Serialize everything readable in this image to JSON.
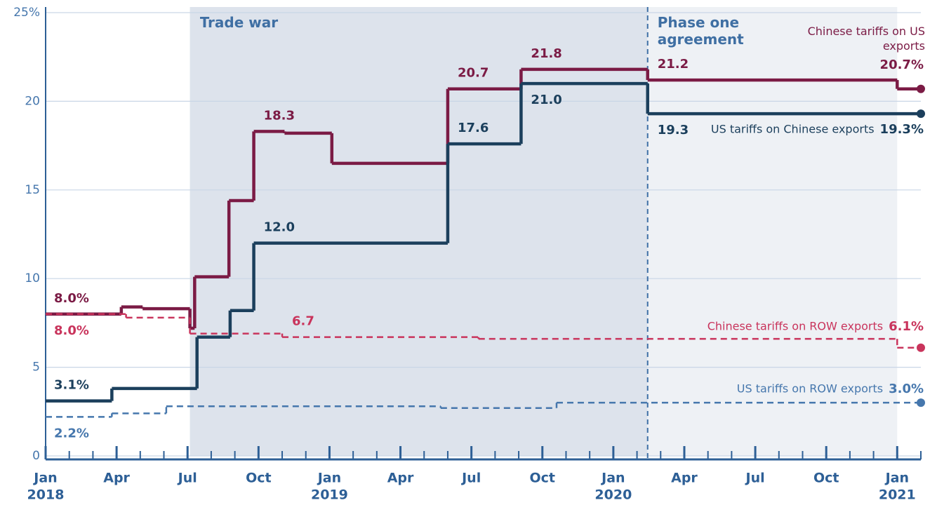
{
  "chart_data": {
    "type": "line",
    "step": "post",
    "xlim": [
      0,
      37
    ],
    "ylim": [
      0,
      25
    ],
    "yticks": [
      0,
      5,
      10,
      15,
      20,
      {
        "value": 25,
        "label": "25%"
      }
    ],
    "xticks": [
      {
        "value": 0,
        "label": "Jan"
      },
      {
        "value": 3,
        "label": "Apr"
      },
      {
        "value": 6,
        "label": "Jul"
      },
      {
        "value": 9,
        "label": "Oct"
      },
      {
        "value": 12,
        "label": "Jan"
      },
      {
        "value": 15,
        "label": "Apr"
      },
      {
        "value": 18,
        "label": "Jul"
      },
      {
        "value": 21,
        "label": "Oct"
      },
      {
        "value": 24,
        "label": "Jan"
      },
      {
        "value": 27,
        "label": "Apr"
      },
      {
        "value": 30,
        "label": "Jul"
      },
      {
        "value": 33,
        "label": "Oct"
      },
      {
        "value": 36,
        "label": "Jan"
      }
    ],
    "x_year_labels": [
      {
        "value": 0,
        "label": "2018"
      },
      {
        "value": 12,
        "label": "2019"
      },
      {
        "value": 24,
        "label": "2020"
      },
      {
        "value": 36,
        "label": "2021"
      }
    ],
    "minor_xticks": [
      1,
      2,
      4,
      5,
      7,
      8,
      10,
      11,
      13,
      14,
      16,
      17,
      19,
      20,
      22,
      23,
      25,
      26,
      28,
      29,
      31,
      32,
      34,
      35,
      37
    ],
    "grid": true,
    "regions": [
      {
        "label": "Trade war",
        "start": 6.1,
        "end": 25.45,
        "color": "#dde3ec"
      },
      {
        "label": "Phase one agreement",
        "start": 25.45,
        "end": 36,
        "color": "#eef1f5"
      }
    ],
    "series": [
      {
        "name": "Chinese tariffs on US exports",
        "color": "#7b1b45",
        "dashed": false,
        "x": [
          0,
          3.2,
          4.1,
          6.1,
          6.3,
          7.75,
          8.8,
          10.1,
          12.1,
          17,
          20.1,
          25.45,
          36,
          37
        ],
        "values": [
          8.0,
          8.4,
          8.3,
          7.2,
          10.1,
          14.4,
          18.3,
          18.2,
          16.5,
          20.7,
          21.8,
          21.2,
          20.7,
          20.7
        ],
        "value_labels": [
          "8.0%",
          null,
          null,
          null,
          null,
          null,
          "18.3",
          null,
          null,
          "20.7",
          "21.8",
          "21.2",
          null,
          "20.7%"
        ]
      },
      {
        "name": "US tariffs on Chinese exports",
        "color": "#1b3f5c",
        "dashed": false,
        "x": [
          0,
          2.8,
          6.4,
          7.8,
          8.8,
          17,
          20.1,
          25.45,
          37
        ],
        "values": [
          3.1,
          3.8,
          6.7,
          8.2,
          12.0,
          17.6,
          21.0,
          19.3,
          19.3
        ],
        "value_labels": [
          "3.1%",
          null,
          null,
          null,
          "12.0",
          "17.6",
          "21.0",
          "19.3",
          "19.3%"
        ]
      },
      {
        "name": "Chinese tariffs on ROW exports",
        "color": "#c9345c",
        "dashed": true,
        "x": [
          0,
          3.4,
          6.1,
          10,
          18.3,
          36,
          37
        ],
        "values": [
          8.0,
          7.8,
          6.9,
          6.7,
          6.6,
          6.1,
          6.1
        ],
        "value_labels": [
          "8.0%",
          null,
          null,
          "6.7",
          null,
          null,
          "6.1%"
        ]
      },
      {
        "name": "US tariffs on ROW exports",
        "color": "#4677ad",
        "dashed": true,
        "x": [
          0,
          2.8,
          5.1,
          16.7,
          21.6,
          37
        ],
        "values": [
          2.2,
          2.4,
          2.8,
          2.7,
          3.0,
          3.0
        ],
        "value_labels": [
          "2.2%",
          null,
          null,
          null,
          null,
          "3.0%"
        ]
      }
    ]
  }
}
